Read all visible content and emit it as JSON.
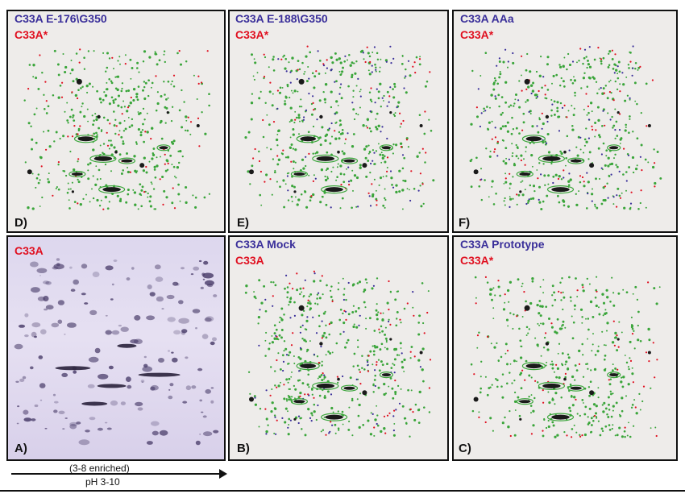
{
  "figure": {
    "panels": [
      {
        "id": "D",
        "letter": "D)",
        "top_label": "C33A E-176\\G350",
        "sub_label": "C33A*"
      },
      {
        "id": "E",
        "letter": "E)",
        "top_label": "C33A E-188\\G350",
        "sub_label": "C33A*"
      },
      {
        "id": "F",
        "letter": "F)",
        "top_label": "C33A AAa",
        "sub_label": "C33A*"
      },
      {
        "id": "A",
        "letter": "A)",
        "top_label": "C33A",
        "sub_label": ""
      },
      {
        "id": "B",
        "letter": "B)",
        "top_label": "C33A Mock",
        "sub_label": "C33A"
      },
      {
        "id": "C",
        "letter": "C)",
        "top_label": "C33A Prototype",
        "sub_label": "C33A*"
      }
    ],
    "axis": {
      "label": "pH 3-10",
      "sublabel": "(3-8 enriched)"
    },
    "colors": {
      "green": "#3aa53a",
      "red": "#e01020",
      "blue": "#3a2f9a",
      "dark": "#1a1a1a",
      "gel": "#4a3d6a"
    }
  }
}
